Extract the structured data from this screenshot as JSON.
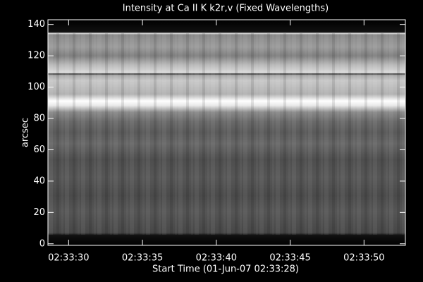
{
  "chart_data": {
    "type": "heatmap",
    "title": "Intensity at Ca II K k2r,v (Fixed Wavelengths)",
    "x_label": "Start Time (01-Jun-07 02:33:28)",
    "y_label": "arcsec",
    "xlim": [
      28.6,
      52.8
    ],
    "xticks": [
      {
        "value": 30,
        "label": "02:33:30"
      },
      {
        "value": 35,
        "label": "02:33:35"
      },
      {
        "value": 40,
        "label": "02:33:40"
      },
      {
        "value": 45,
        "label": "02:33:45"
      },
      {
        "value": 50,
        "label": "02:33:50"
      }
    ],
    "ylim": [
      -1,
      143
    ],
    "yticks": [
      0,
      20,
      40,
      60,
      80,
      100,
      120,
      140
    ],
    "colormap": "gray"
  }
}
